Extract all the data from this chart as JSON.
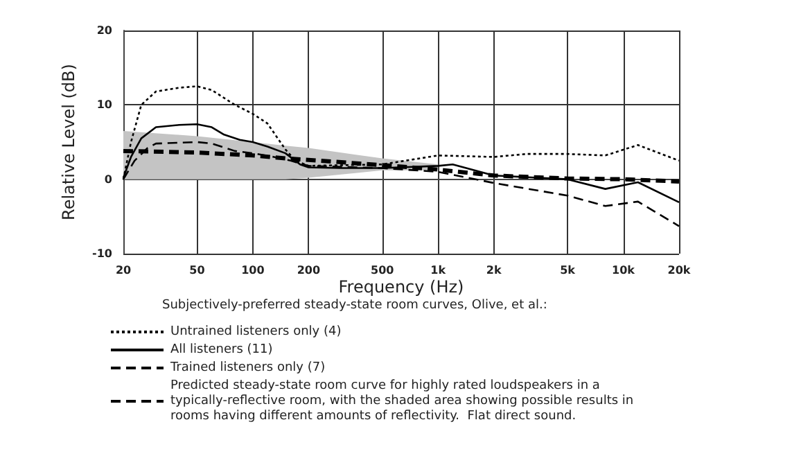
{
  "chart_data": {
    "type": "line",
    "xlabel": "Frequency (Hz)",
    "ylabel": "Relative Level (dB)",
    "log": "x",
    "grid": true,
    "legend": "bottom",
    "marker": "none",
    "xlim": [
      20,
      20000
    ],
    "xticks": [
      20,
      50,
      100,
      200,
      500,
      {
        "value": 1000,
        "label": "1k"
      },
      {
        "value": 2000,
        "label": "2k"
      },
      {
        "value": 5000,
        "label": "5k"
      },
      {
        "value": 10000,
        "label": "10k"
      },
      {
        "value": 20000,
        "label": "20k"
      }
    ],
    "ylim": [
      -10,
      20
    ],
    "yticks": [
      -10,
      0,
      10,
      20
    ],
    "annotations": [
      "Subjectively-preferred steady-state room curves, Olive, et al.:"
    ],
    "series": [
      {
        "name": "Untrained listeners only (4)",
        "color": "#000000",
        "line_style": "dotted",
        "x": [
          20,
          22,
          25,
          30,
          40,
          50,
          60,
          80,
          100,
          120,
          150,
          170,
          200,
          500,
          1000,
          2000,
          3000,
          5000,
          8000,
          12000,
          20000
        ],
        "values": [
          0,
          5,
          10,
          11.8,
          12.3,
          12.5,
          12,
          10,
          8.8,
          7.5,
          4,
          2.5,
          1.8,
          2,
          3.2,
          3,
          3.4,
          3.4,
          3.2,
          4.6,
          2.5
        ]
      },
      {
        "name": "All listeners (11)",
        "color": "#000000",
        "line_style": "solid",
        "x": [
          20,
          22,
          25,
          30,
          40,
          50,
          60,
          70,
          85,
          100,
          120,
          150,
          180,
          200,
          300,
          500,
          1000,
          1200,
          2000,
          5000,
          8000,
          12000,
          20000
        ],
        "values": [
          0.2,
          3,
          5.5,
          7,
          7.3,
          7.4,
          7,
          6,
          5.3,
          5,
          4.4,
          3.5,
          2,
          1.6,
          1.5,
          1.5,
          1.8,
          2,
          0.5,
          0,
          -1.3,
          -0.4,
          -3.1
        ]
      },
      {
        "name": "Trained listeners only (7)",
        "color": "#000000",
        "line_style": "dashed",
        "x": [
          20,
          23,
          27,
          30,
          50,
          60,
          80,
          100,
          130,
          160,
          200,
          500,
          1000,
          2000,
          5000,
          8000,
          12000,
          20000
        ],
        "values": [
          0,
          2.5,
          4.2,
          4.8,
          5,
          4.8,
          3.8,
          3.5,
          3,
          2.5,
          1.8,
          1.5,
          1,
          -0.5,
          -2.2,
          -3.6,
          -3,
          -6.3
        ]
      },
      {
        "name": "Predicted steady-state room curve for highly rated loudspeakers in a typically-reflective room, with the shaded area showing possible results in rooms having different amounts of reflectivity.  Flat direct sound.",
        "color": "#000000",
        "line_style": "dashed",
        "x": [
          20,
          50,
          100,
          150,
          200,
          500,
          1000,
          2000,
          5000,
          10000,
          20000
        ],
        "values": [
          3.8,
          3.6,
          3.2,
          2.8,
          2.6,
          1.9,
          1.3,
          0.5,
          0.1,
          0,
          -0.3
        ],
        "lower": [
          0,
          0,
          0,
          0,
          0.2,
          1.2,
          1.2,
          null,
          null,
          null,
          null
        ],
        "upper": [
          6.5,
          5.8,
          5,
          4.5,
          4.2,
          2.8,
          2,
          null,
          null,
          null,
          null
        ]
      }
    ]
  }
}
